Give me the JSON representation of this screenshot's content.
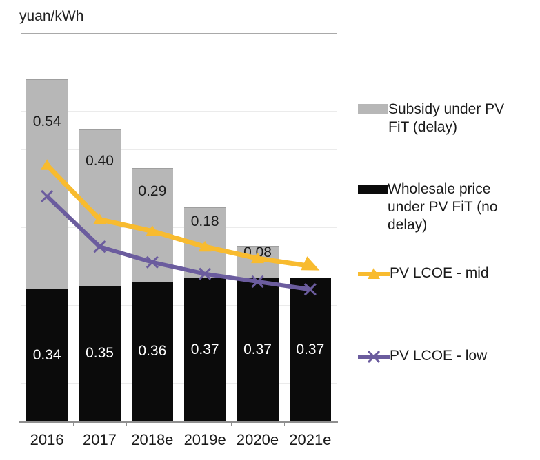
{
  "title": "yuan/kWh",
  "chart_data": {
    "type": "bar+line combo (stacked bars, two line series)",
    "categories": [
      "2016",
      "2017",
      "2018e",
      "2019e",
      "2020e",
      "2021e"
    ],
    "title": "yuan/kWh",
    "ylabel": "yuan/kWh",
    "ylim": [
      0,
      1.0
    ],
    "gridline_interval": 0.1,
    "grid": true,
    "legend_position": "right",
    "series": [
      {
        "name": "Wholesale price under PV FiT (no delay)",
        "type": "bar",
        "role": "stack-bottom",
        "color": "#0b0b0b",
        "label_color": "#ffffff",
        "values": [
          0.34,
          0.35,
          0.36,
          0.37,
          0.37,
          0.37
        ],
        "labels": [
          "0.34",
          "0.35",
          "0.36",
          "0.37",
          "0.37",
          "0.37"
        ]
      },
      {
        "name": "Subsidy under PV FiT (delay)",
        "type": "bar",
        "role": "stack-top",
        "color": "#b7b7b7",
        "label_color": "#1a1a1a",
        "values": [
          0.54,
          0.4,
          0.29,
          0.18,
          0.08,
          0
        ],
        "labels": [
          "0.54",
          "0.40",
          "0.29",
          "0.18",
          "0.08",
          ""
        ]
      },
      {
        "name": "PV LCOE - mid",
        "type": "line",
        "marker": "triangle",
        "end_arrow": true,
        "color": "#f8bb2f",
        "values": [
          0.66,
          0.52,
          0.49,
          0.45,
          0.42,
          0.4
        ]
      },
      {
        "name": "PV LCOE - low",
        "type": "line",
        "marker": "x",
        "end_arrow": false,
        "color": "#6b5c9e",
        "values": [
          0.58,
          0.45,
          0.41,
          0.38,
          0.36,
          0.34
        ]
      }
    ]
  },
  "legend": {
    "items": [
      {
        "label": "Subsidy under PV FiT (delay)",
        "swatch": "gray-rect"
      },
      {
        "label": "Wholesale price under PV FiT (no delay)",
        "swatch": "black-rect"
      },
      {
        "label": "PV LCOE - mid",
        "swatch": "yellow-line-triangle"
      },
      {
        "label": "PV LCOE - low",
        "swatch": "purple-line-x"
      }
    ]
  },
  "colors": {
    "subsidy_gray": "#b7b7b7",
    "wholesale_black": "#0b0b0b",
    "lcoe_mid_yellow": "#f8bb2f",
    "lcoe_low_purple": "#6b5c9e",
    "gridline": "#ebebeb",
    "axis": "#8f8f8f"
  }
}
